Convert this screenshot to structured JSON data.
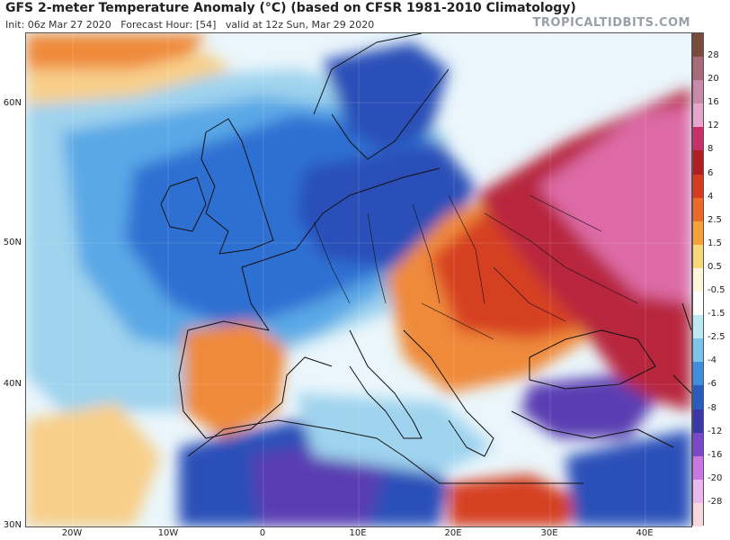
{
  "header": {
    "title": "GFS 2-meter Temperature Anomaly (°C) (based on CFSR 1981-2010 Climatology)",
    "subtitle": "Init: 06z Mar 27 2020   Forecast Hour: [54]   valid at 12z Sun, Mar 29 2020",
    "brand": "TROPICALTIDBITS.COM"
  },
  "axes": {
    "lat_ticks": [
      "60N",
      "50N",
      "40N",
      "30N"
    ],
    "lon_ticks": [
      "20W",
      "10W",
      "0",
      "10E",
      "20E",
      "30E",
      "40E"
    ]
  },
  "colorbar": {
    "labels": [
      "28",
      "20",
      "16",
      "12",
      "8",
      "6",
      "4",
      "2.5",
      "1.5",
      "0.5",
      "-0.5",
      "-1.5",
      "-2.5",
      "-4",
      "-6",
      "-8",
      "-12",
      "-16",
      "-20",
      "-28"
    ],
    "colors": [
      "#7a4a3a",
      "#a86a78",
      "#c88aa8",
      "#e6a6cc",
      "#c8306a",
      "#b01e22",
      "#d83a20",
      "#ec6a28",
      "#f4a23a",
      "#f8d878",
      "#fdf6d8",
      "#ffffff",
      "#bfe8f4",
      "#7cc4ea",
      "#3f8fdc",
      "#2a5cc0",
      "#3a38a8",
      "#7a48c8",
      "#c878e0",
      "#e8b8ee",
      "#f6d8de"
    ]
  },
  "map_colors": {
    "ocean_neutral": "#eaf6fb",
    "cool_light": "#9fd3ee",
    "cool_mid": "#5aa8e6",
    "cool_deep": "#2f6fd2",
    "cold": "#2c4fb8",
    "very_cold": "#5a3cb2",
    "warm_light": "#f8cf8a",
    "warm": "#ef8a3a",
    "hot": "#d64022",
    "very_hot": "#b8283e",
    "extreme": "#dd6aa6",
    "border": "#111111"
  }
}
